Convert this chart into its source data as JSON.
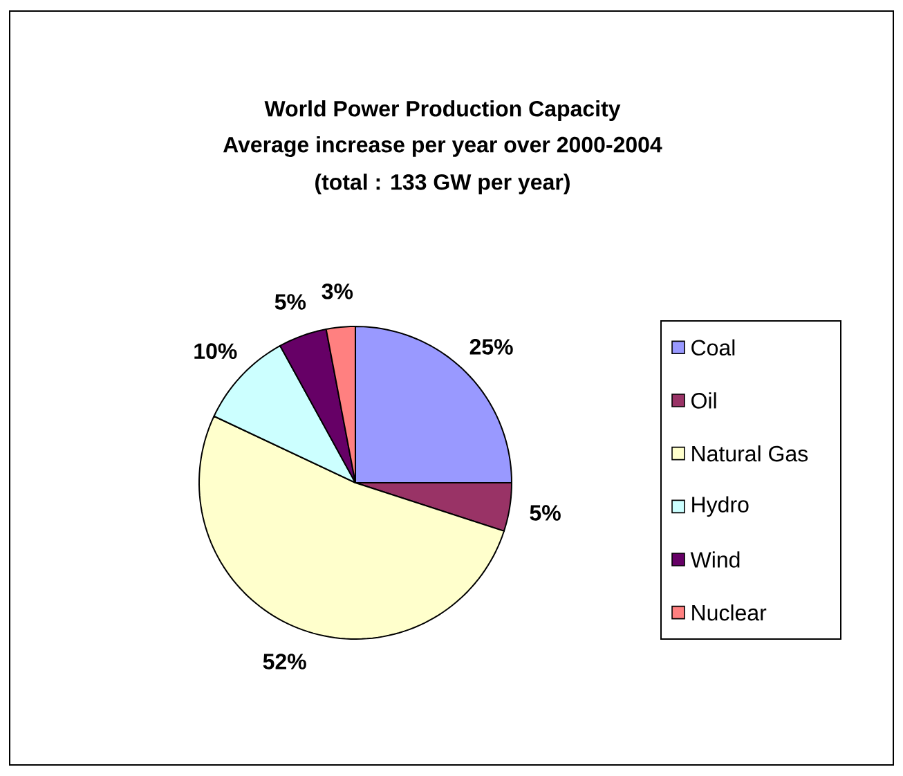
{
  "chart_data": {
    "type": "pie",
    "title": "World Power Production Capacity",
    "subtitle": "Average increase per year over 2000-2004",
    "annotations": [
      "(total : 133 GW per year)"
    ],
    "categories": [
      "Coal",
      "Oil",
      "Natural Gas",
      "Hydro",
      "Wind",
      "Nuclear"
    ],
    "values": [
      25,
      5,
      52,
      10,
      5,
      3
    ],
    "value_labels": [
      "25%",
      "5%",
      "52%",
      "10%",
      "5%",
      "3%"
    ],
    "colors": [
      "#9999ff",
      "#993366",
      "#ffffcc",
      "#ccffff",
      "#660066",
      "#ff8080"
    ],
    "legend": "right"
  }
}
